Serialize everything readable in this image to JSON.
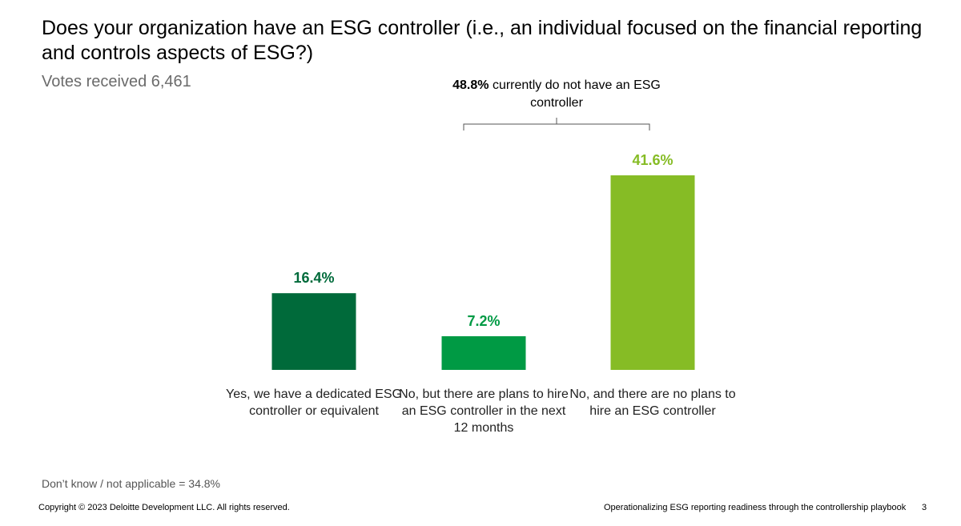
{
  "chart_data": {
    "type": "bar",
    "title": "Does your organization have an ESG controller (i.e., an individual focused on the financial reporting and controls aspects of ESG?)",
    "subtitle": "Votes received 6,461",
    "categories": [
      "Yes, we have a dedicated ESG controller or equivalent",
      "No, but there are plans to hire an ESG controller in the next 12 months",
      "No, and there are no plans to hire an ESG controller"
    ],
    "values": [
      16.4,
      7.2,
      41.6
    ],
    "value_labels": [
      "16.4%",
      "7.2%",
      "41.6%"
    ],
    "colors": [
      "#006a3a",
      "#009a44",
      "#86bc25"
    ],
    "annotation": {
      "emphasis": "48.8%",
      "text": "currently do not have an ESG controller"
    },
    "footnote": "Don’t know / not applicable = 34.8%"
  },
  "footer": {
    "copyright": "Copyright © 2023 Deloitte Development LLC. All rights reserved.",
    "deck_title": "Operationalizing ESG reporting readiness through the controllership playbook",
    "page_number": 3
  }
}
